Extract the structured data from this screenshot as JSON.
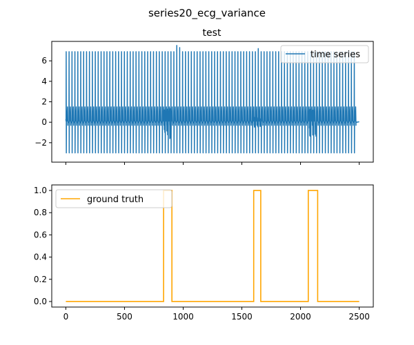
{
  "figure": {
    "suptitle": "series20_ecg_variance"
  },
  "colors": {
    "series": "#1f77b4",
    "ground_truth": "#ffa500",
    "axis": "#000000"
  },
  "chart_data": [
    {
      "type": "line",
      "title": "test",
      "xlabel": "",
      "ylabel": "",
      "xlim": [
        -120,
        2620
      ],
      "ylim": [
        -3.9,
        7.9
      ],
      "x_ticks": [
        0,
        500,
        1000,
        1500,
        2000,
        2500
      ],
      "x_tick_labels_visible": false,
      "y_ticks": [
        -2,
        0,
        2,
        4,
        6
      ],
      "y_tick_labels": [
        "−2",
        "0",
        "2",
        "4",
        "6"
      ],
      "legend": {
        "position": "top-right",
        "entries": [
          "time series"
        ]
      },
      "grid": false,
      "series": [
        {
          "name": "time series",
          "x_range": [
            0,
            2500
          ],
          "baseline": 0,
          "beats_peak": [
            6.9,
            6.9,
            6.9,
            6.9,
            6.9,
            6.9,
            6.9,
            6.9,
            6.9,
            6.9,
            6.9,
            6.9,
            6.9,
            6.9,
            6.9,
            6.9,
            6.9,
            6.9,
            6.9,
            6.9,
            6.9,
            6.9,
            6.9,
            6.9,
            6.9,
            6.9,
            6.9,
            6.9,
            6.9,
            6.9,
            6.9,
            6.9,
            6.9,
            6.9,
            6.9,
            6.9,
            6.9,
            6.9,
            7.5,
            7.3,
            6.9,
            6.9,
            6.9,
            6.9,
            6.9,
            6.9,
            6.9,
            6.9,
            6.9,
            6.9,
            6.9,
            6.9,
            6.9,
            6.9,
            6.9,
            6.9,
            6.9,
            6.9,
            6.9,
            6.9,
            6.9,
            6.9,
            6.9,
            6.9,
            6.9,
            6.9,
            7.2,
            6.9,
            6.9,
            6.9,
            6.9,
            6.9,
            6.9,
            6.9,
            6.9,
            6.9,
            6.9,
            6.9,
            6.9,
            6.9,
            6.9,
            6.9,
            6.9,
            6.9,
            6.9,
            6.9,
            6.9,
            6.9,
            6.9,
            6.9,
            6.9,
            6.9,
            6.9,
            6.9,
            6.9,
            6.9,
            6.9,
            6.9,
            6.9,
            6.9
          ],
          "beats_trough": -3.0,
          "secondary_peak": 1.5,
          "noise_segments": [
            {
              "x_start": 820,
              "x_end": 910,
              "amplitude": 1.6
            },
            {
              "x_start": 1600,
              "x_end": 1660,
              "amplitude": 0.5
            },
            {
              "x_start": 2060,
              "x_end": 2150,
              "amplitude": 1.4
            }
          ]
        }
      ]
    },
    {
      "type": "line",
      "title": "",
      "xlabel": "",
      "ylabel": "",
      "xlim": [
        -120,
        2620
      ],
      "ylim": [
        -0.05,
        1.05
      ],
      "x_ticks": [
        0,
        500,
        1000,
        1500,
        2000,
        2500
      ],
      "x_tick_labels": [
        "0",
        "500",
        "1000",
        "1500",
        "2000",
        "2500"
      ],
      "y_ticks": [
        0.0,
        0.2,
        0.4,
        0.6,
        0.8,
        1.0
      ],
      "y_tick_labels": [
        "0.0",
        "0.2",
        "0.4",
        "0.6",
        "0.8",
        "1.0"
      ],
      "legend": {
        "position": "top-left",
        "entries": [
          "ground truth"
        ]
      },
      "grid": false,
      "series": [
        {
          "name": "ground truth",
          "x": [
            0,
            833,
            833,
            904,
            904,
            1601,
            1601,
            1661,
            1661,
            2066,
            2066,
            2146,
            2146,
            2500
          ],
          "y": [
            0,
            0,
            1,
            1,
            0,
            0,
            1,
            1,
            0,
            0,
            1,
            1,
            0,
            0
          ]
        }
      ]
    }
  ]
}
